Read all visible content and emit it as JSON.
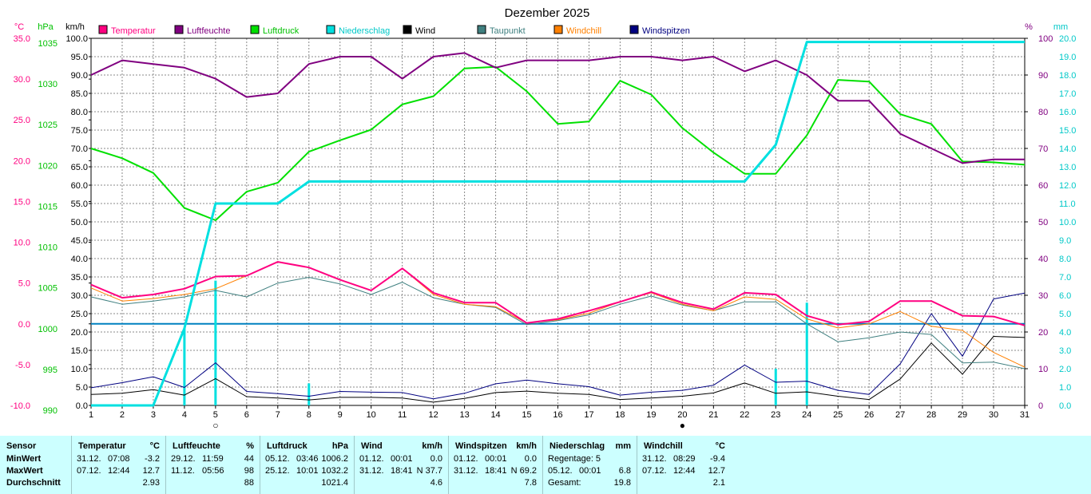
{
  "chart_data": {
    "type": "line",
    "title": "Dezember 2025",
    "x": [
      1,
      2,
      3,
      4,
      5,
      6,
      7,
      8,
      9,
      10,
      11,
      12,
      13,
      14,
      15,
      16,
      17,
      18,
      19,
      20,
      21,
      22,
      23,
      24,
      25,
      26,
      27,
      28,
      29,
      30,
      31
    ],
    "axes": {
      "temperature": {
        "unit": "°C",
        "ticks": [
          "35.0",
          "30.0",
          "25.0",
          "20.0",
          "15.0",
          "10.0",
          "5.0",
          "0.0",
          "-5.0",
          "-10.0"
        ],
        "range": [
          -10,
          35
        ]
      },
      "pressure": {
        "unit": "hPa",
        "ticks": [
          "1035",
          "1030",
          "1025",
          "1020",
          "1015",
          "1010",
          "1005",
          "1000",
          "995",
          "990"
        ],
        "range": [
          990,
          1035
        ]
      },
      "wind": {
        "unit": "km/h",
        "ticks": [
          "100.0",
          "95.0",
          "90.0",
          "85.0",
          "80.0",
          "75.0",
          "70.0",
          "65.0",
          "60.0",
          "55.0",
          "50.0",
          "45.0",
          "40.0",
          "35.0",
          "30.0",
          "25.0",
          "20.0",
          "15.0",
          "10.0",
          "5.0",
          "0.0"
        ],
        "range": [
          0,
          100
        ]
      },
      "humidity": {
        "unit": "%",
        "ticks": [
          "100",
          "90",
          "80",
          "70",
          "60",
          "50",
          "40",
          "30",
          "20",
          "10",
          "0"
        ],
        "range": [
          0,
          100
        ]
      },
      "precipitation": {
        "unit": "mm",
        "ticks": [
          "20.0",
          "19.0",
          "18.0",
          "17.0",
          "16.0",
          "15.0",
          "14.0",
          "13.0",
          "12.0",
          "11.0",
          "10.0",
          "9.0",
          "8.0",
          "7.0",
          "6.0",
          "5.0",
          "4.0",
          "3.0",
          "2.0",
          "1.0",
          "0.0"
        ],
        "range": [
          0,
          20
        ]
      }
    },
    "series": [
      {
        "name": "Temperatur",
        "axis": "temperature",
        "color": "#ff0080",
        "width": 2,
        "values": [
          4.8,
          3.2,
          3.6,
          4.3,
          5.8,
          5.9,
          7.6,
          6.9,
          5.4,
          4.1,
          6.8,
          3.8,
          2.6,
          2.6,
          0.1,
          0.6,
          1.6,
          2.7,
          3.9,
          2.6,
          1.8,
          3.8,
          3.6,
          1.0,
          -0.1,
          0.3,
          2.8,
          2.8,
          1.0,
          0.9,
          -0.2
        ]
      },
      {
        "name": "Luftfeuchte",
        "axis": "humidity",
        "color": "#800080",
        "width": 2,
        "values": [
          90,
          94,
          93,
          92,
          89,
          84,
          85,
          93,
          95,
          95,
          89,
          95,
          96,
          92,
          94,
          94,
          94,
          95,
          95,
          94,
          95,
          91,
          94,
          90,
          83,
          83,
          74,
          70,
          66,
          67,
          67
        ]
      },
      {
        "name": "Luftdruck",
        "axis": "pressure",
        "color": "#00e000",
        "width": 2,
        "values": [
          1021.5,
          1020.3,
          1018.5,
          1014.2,
          1012.7,
          1016.2,
          1017.3,
          1021.1,
          1022.5,
          1023.8,
          1026.9,
          1027.9,
          1031.3,
          1031.5,
          1028.5,
          1024.5,
          1024.8,
          1029.8,
          1028.1,
          1024.0,
          1021.0,
          1018.4,
          1018.4,
          1023.1,
          1029.9,
          1029.7,
          1025.7,
          1024.5,
          1019.9,
          1019.8,
          1019.5
        ]
      },
      {
        "name": "Niederschlag",
        "axis": "precipitation",
        "color": "#00e0e0",
        "width": 3,
        "kind": "cumulative",
        "values": [
          0.0,
          0.0,
          0.0,
          4.2,
          11.0,
          11.0,
          11.0,
          12.2,
          12.2,
          12.2,
          12.2,
          12.2,
          12.2,
          12.2,
          12.2,
          12.2,
          12.2,
          12.2,
          12.2,
          12.2,
          12.2,
          12.2,
          14.2,
          19.8,
          19.8,
          19.8,
          19.8,
          19.8,
          19.8,
          19.8,
          19.8
        ],
        "daily": [
          0.0,
          0.0,
          0.0,
          4.2,
          6.8,
          0.0,
          0.0,
          1.2,
          0.0,
          0.0,
          0.0,
          0.0,
          0.0,
          0.0,
          0.0,
          0.0,
          0.0,
          0.0,
          0.0,
          0.0,
          0.0,
          0.0,
          2.0,
          5.6,
          0.0,
          0.0,
          0.0,
          0.0,
          0.0,
          0.0,
          0.0
        ]
      },
      {
        "name": "Wind",
        "axis": "wind",
        "color": "#000000",
        "width": 1,
        "values": [
          3.0,
          3.3,
          4.3,
          2.8,
          7.3,
          2.4,
          2.0,
          1.5,
          2.2,
          2.2,
          2.0,
          0.9,
          1.9,
          3.5,
          3.9,
          3.3,
          3.0,
          1.6,
          2.0,
          2.5,
          3.4,
          6.1,
          3.3,
          3.7,
          2.5,
          1.6,
          7.2,
          17.0,
          8.5,
          18.8,
          18.5
        ]
      },
      {
        "name": "Taupunkt",
        "axis": "temperature",
        "color": "#408080",
        "width": 1,
        "values": [
          3.3,
          2.4,
          2.8,
          3.3,
          4.1,
          3.3,
          5.0,
          5.7,
          4.9,
          3.6,
          5.1,
          3.2,
          2.4,
          2.0,
          -0.1,
          0.4,
          1.1,
          2.4,
          3.4,
          2.3,
          1.6,
          2.7,
          2.7,
          0.0,
          -2.2,
          -1.7,
          -1.0,
          -1.3,
          -4.8,
          -4.7,
          -5.5
        ]
      },
      {
        "name": "Windchill",
        "axis": "temperature",
        "color": "#ff8000",
        "width": 1,
        "values": [
          4.4,
          2.8,
          3.1,
          3.6,
          4.3,
          5.9,
          7.6,
          6.9,
          5.4,
          4.1,
          6.8,
          3.6,
          2.4,
          2.1,
          0.1,
          0.5,
          1.3,
          2.7,
          3.8,
          2.4,
          1.6,
          3.3,
          3.0,
          0.6,
          -0.5,
          0.0,
          1.5,
          -0.3,
          -0.8,
          -3.5,
          -5.3
        ]
      },
      {
        "name": "Windspitzen",
        "axis": "wind",
        "color": "#000080",
        "width": 1,
        "values": [
          4.8,
          6.2,
          7.8,
          4.9,
          11.6,
          3.8,
          3.2,
          2.5,
          3.8,
          3.6,
          3.5,
          1.8,
          3.3,
          5.9,
          6.9,
          5.9,
          5.1,
          2.8,
          3.6,
          4.1,
          5.5,
          11.0,
          6.3,
          6.6,
          4.1,
          3.0,
          11.3,
          25.0,
          13.4,
          29.0,
          30.6
        ]
      }
    ],
    "reference_line": {
      "axis": "temperature",
      "value": 0.0,
      "color": "#0080c0"
    },
    "x_markers": [
      {
        "x": 5,
        "symbol": "○"
      },
      {
        "x": 20,
        "symbol": "●"
      }
    ],
    "legend_position": "top",
    "grid": true
  },
  "stats": {
    "columns": [
      {
        "header": "Sensor",
        "unit": "",
        "rows": [
          "MinWert",
          "MaxWert",
          "Durchschnitt"
        ]
      },
      {
        "header": "Temperatur",
        "unit": "°C",
        "rows": [
          [
            "31.12.",
            "07:08",
            "-3.2"
          ],
          [
            "07.12.",
            "12:44",
            "12.7"
          ],
          [
            "",
            "",
            "2.93"
          ]
        ]
      },
      {
        "header": "Luftfeuchte",
        "unit": "%",
        "rows": [
          [
            "29.12.",
            "11:59",
            "44"
          ],
          [
            "11.12.",
            "05:56",
            "98"
          ],
          [
            "",
            "",
            "88"
          ]
        ]
      },
      {
        "header": "Luftdruck",
        "unit": "hPa",
        "rows": [
          [
            "05.12.",
            "03:46",
            "1006.2"
          ],
          [
            "25.12.",
            "10:01",
            "1032.2"
          ],
          [
            "",
            "",
            "1021.4"
          ]
        ]
      },
      {
        "header": "Wind",
        "unit": "km/h",
        "rows": [
          [
            "01.12.",
            "00:01",
            "0.0"
          ],
          [
            "31.12.",
            "18:41",
            "N 37.7"
          ],
          [
            "",
            "",
            "4.6"
          ]
        ]
      },
      {
        "header": "Windspitzen",
        "unit": "km/h",
        "rows": [
          [
            "01.12.",
            "00:01",
            "0.0"
          ],
          [
            "31.12.",
            "18:41",
            "N 69.2"
          ],
          [
            "",
            "",
            "7.8"
          ]
        ]
      },
      {
        "header": "Niederschlag",
        "unit": "mm",
        "rows": [
          [
            "Regentage: 5",
            "",
            ""
          ],
          [
            "05.12.",
            "00:01",
            "6.8"
          ],
          [
            "Gesamt:",
            "",
            "19.8"
          ]
        ]
      },
      {
        "header": "Windchill",
        "unit": "°C",
        "rows": [
          [
            "31.12.",
            "08:29",
            "-9.4"
          ],
          [
            "07.12.",
            "12:44",
            "12.7"
          ],
          [
            "",
            "",
            "2.1"
          ]
        ]
      }
    ]
  }
}
